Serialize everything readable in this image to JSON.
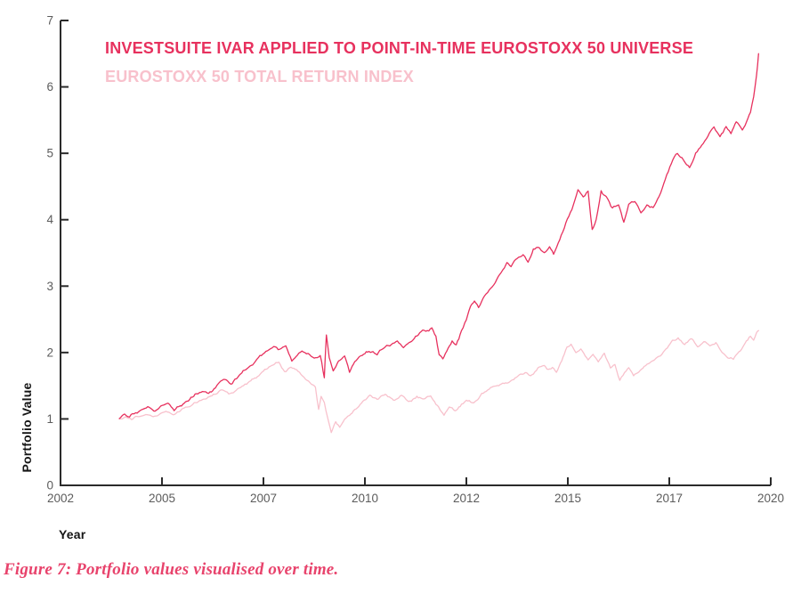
{
  "figure": {
    "caption": "Figure 7: Portfolio values visualised over time."
  },
  "colors": {
    "ivar": "#E7315E",
    "index": "#F8C1CC",
    "caption": "#E8436C",
    "axis": "#2B2B2B",
    "tick_label": "#5C5C5C",
    "axis_title": "#151515"
  },
  "chart_data": {
    "type": "line",
    "title": "",
    "legend_position": "top-left",
    "grid": false,
    "legend": [
      {
        "label": "INVESTSUITE IVAR APPLIED TO POINT-IN-TIME EUROSTOXX 50 UNIVERSE",
        "color_key": "ivar"
      },
      {
        "label": "EUROSTOXX 50 TOTAL RETURN INDEX",
        "color_key": "index"
      }
    ],
    "x_axis": {
      "title": "Year",
      "tick_labels": [
        "2002",
        "2005",
        "2007",
        "2010",
        "2012",
        "2015",
        "2017",
        "2020"
      ],
      "range_years": [
        2002,
        2019.5
      ]
    },
    "y_axis": {
      "title": "Portfolio Value",
      "ticks": [
        0,
        1,
        2,
        3,
        4,
        5,
        6,
        7
      ],
      "range": [
        0,
        7
      ]
    },
    "series": [
      {
        "name": "EUROSTOXX 50 TOTAL RETURN INDEX",
        "color_key": "index",
        "noise_amp": 0.013,
        "points": [
          [
            2003.45,
            1.0
          ],
          [
            2003.6,
            1.03
          ],
          [
            2003.75,
            0.99
          ],
          [
            2003.95,
            1.04
          ],
          [
            2004.1,
            1.07
          ],
          [
            2004.25,
            1.04
          ],
          [
            2004.45,
            1.08
          ],
          [
            2004.6,
            1.11
          ],
          [
            2004.78,
            1.06
          ],
          [
            2004.95,
            1.12
          ],
          [
            2005.15,
            1.18
          ],
          [
            2005.4,
            1.26
          ],
          [
            2005.6,
            1.31
          ],
          [
            2005.8,
            1.37
          ],
          [
            2006.0,
            1.44
          ],
          [
            2006.18,
            1.38
          ],
          [
            2006.4,
            1.46
          ],
          [
            2006.62,
            1.55
          ],
          [
            2006.85,
            1.64
          ],
          [
            2007.0,
            1.72
          ],
          [
            2007.2,
            1.8
          ],
          [
            2007.38,
            1.85
          ],
          [
            2007.52,
            1.71
          ],
          [
            2007.68,
            1.78
          ],
          [
            2007.85,
            1.72
          ],
          [
            2008.0,
            1.63
          ],
          [
            2008.15,
            1.55
          ],
          [
            2008.28,
            1.48
          ],
          [
            2008.36,
            1.14
          ],
          [
            2008.42,
            1.34
          ],
          [
            2008.5,
            1.25
          ],
          [
            2008.58,
            1.02
          ],
          [
            2008.67,
            0.8
          ],
          [
            2008.78,
            0.96
          ],
          [
            2008.88,
            0.87
          ],
          [
            2009.0,
            1.0
          ],
          [
            2009.12,
            1.06
          ],
          [
            2009.28,
            1.15
          ],
          [
            2009.45,
            1.27
          ],
          [
            2009.62,
            1.36
          ],
          [
            2009.8,
            1.3
          ],
          [
            2010.0,
            1.37
          ],
          [
            2010.2,
            1.28
          ],
          [
            2010.4,
            1.36
          ],
          [
            2010.58,
            1.26
          ],
          [
            2010.78,
            1.34
          ],
          [
            2010.95,
            1.3
          ],
          [
            2011.12,
            1.35
          ],
          [
            2011.28,
            1.2
          ],
          [
            2011.45,
            1.05
          ],
          [
            2011.58,
            1.18
          ],
          [
            2011.72,
            1.12
          ],
          [
            2011.88,
            1.22
          ],
          [
            2012.0,
            1.28
          ],
          [
            2012.18,
            1.24
          ],
          [
            2012.38,
            1.38
          ],
          [
            2012.6,
            1.47
          ],
          [
            2012.8,
            1.5
          ],
          [
            2013.0,
            1.54
          ],
          [
            2013.2,
            1.62
          ],
          [
            2013.45,
            1.7
          ],
          [
            2013.58,
            1.65
          ],
          [
            2013.8,
            1.78
          ],
          [
            2013.92,
            1.81
          ],
          [
            2014.02,
            1.74
          ],
          [
            2014.12,
            1.78
          ],
          [
            2014.22,
            1.7
          ],
          [
            2014.35,
            1.88
          ],
          [
            2014.48,
            2.08
          ],
          [
            2014.58,
            2.13
          ],
          [
            2014.7,
            2.0
          ],
          [
            2014.82,
            2.05
          ],
          [
            2015.0,
            1.89
          ],
          [
            2015.12,
            1.97
          ],
          [
            2015.25,
            1.86
          ],
          [
            2015.4,
            1.99
          ],
          [
            2015.55,
            1.77
          ],
          [
            2015.66,
            1.82
          ],
          [
            2015.78,
            1.58
          ],
          [
            2015.9,
            1.7
          ],
          [
            2016.0,
            1.77
          ],
          [
            2016.12,
            1.65
          ],
          [
            2016.28,
            1.73
          ],
          [
            2016.45,
            1.82
          ],
          [
            2016.6,
            1.88
          ],
          [
            2016.78,
            1.95
          ],
          [
            2016.92,
            2.05
          ],
          [
            2017.08,
            2.18
          ],
          [
            2017.22,
            2.22
          ],
          [
            2017.38,
            2.12
          ],
          [
            2017.55,
            2.21
          ],
          [
            2017.7,
            2.08
          ],
          [
            2017.85,
            2.16
          ],
          [
            2018.0,
            2.1
          ],
          [
            2018.15,
            2.15
          ],
          [
            2018.3,
            2.0
          ],
          [
            2018.45,
            1.92
          ],
          [
            2018.58,
            1.9
          ],
          [
            2018.75,
            2.02
          ],
          [
            2018.9,
            2.17
          ],
          [
            2019.0,
            2.24
          ],
          [
            2019.08,
            2.19
          ],
          [
            2019.15,
            2.3
          ],
          [
            2019.2,
            2.33
          ]
        ]
      },
      {
        "name": "INVESTSUITE IVAR APPLIED TO POINT-IN-TIME EUROSTOXX 50 UNIVERSE",
        "color_key": "ivar",
        "noise_amp": 0.016,
        "points": [
          [
            2003.45,
            1.0
          ],
          [
            2003.58,
            1.07
          ],
          [
            2003.7,
            1.03
          ],
          [
            2003.85,
            1.09
          ],
          [
            2004.0,
            1.14
          ],
          [
            2004.15,
            1.18
          ],
          [
            2004.3,
            1.12
          ],
          [
            2004.5,
            1.2
          ],
          [
            2004.65,
            1.24
          ],
          [
            2004.8,
            1.13
          ],
          [
            2004.95,
            1.2
          ],
          [
            2005.15,
            1.27
          ],
          [
            2005.35,
            1.38
          ],
          [
            2005.5,
            1.42
          ],
          [
            2005.65,
            1.38
          ],
          [
            2005.85,
            1.5
          ],
          [
            2006.05,
            1.6
          ],
          [
            2006.2,
            1.52
          ],
          [
            2006.4,
            1.66
          ],
          [
            2006.6,
            1.76
          ],
          [
            2006.8,
            1.87
          ],
          [
            2006.95,
            1.96
          ],
          [
            2007.1,
            2.03
          ],
          [
            2007.25,
            2.09
          ],
          [
            2007.4,
            2.05
          ],
          [
            2007.55,
            2.1
          ],
          [
            2007.7,
            1.87
          ],
          [
            2007.8,
            1.94
          ],
          [
            2007.95,
            2.02
          ],
          [
            2008.1,
            1.99
          ],
          [
            2008.25,
            1.92
          ],
          [
            2008.4,
            1.96
          ],
          [
            2008.5,
            1.62
          ],
          [
            2008.55,
            2.26
          ],
          [
            2008.62,
            1.92
          ],
          [
            2008.72,
            1.72
          ],
          [
            2008.85,
            1.88
          ],
          [
            2009.0,
            1.95
          ],
          [
            2009.12,
            1.7
          ],
          [
            2009.25,
            1.86
          ],
          [
            2009.4,
            1.95
          ],
          [
            2009.6,
            2.02
          ],
          [
            2009.8,
            1.97
          ],
          [
            2010.0,
            2.08
          ],
          [
            2010.15,
            2.12
          ],
          [
            2010.3,
            2.18
          ],
          [
            2010.45,
            2.07
          ],
          [
            2010.65,
            2.17
          ],
          [
            2010.85,
            2.3
          ],
          [
            2011.0,
            2.32
          ],
          [
            2011.15,
            2.37
          ],
          [
            2011.25,
            2.24
          ],
          [
            2011.33,
            1.97
          ],
          [
            2011.42,
            1.91
          ],
          [
            2011.55,
            2.07
          ],
          [
            2011.65,
            2.17
          ],
          [
            2011.75,
            2.11
          ],
          [
            2011.88,
            2.33
          ],
          [
            2012.0,
            2.5
          ],
          [
            2012.1,
            2.7
          ],
          [
            2012.2,
            2.77
          ],
          [
            2012.3,
            2.68
          ],
          [
            2012.45,
            2.86
          ],
          [
            2012.6,
            2.97
          ],
          [
            2012.75,
            3.1
          ],
          [
            2012.9,
            3.25
          ],
          [
            2013.0,
            3.36
          ],
          [
            2013.1,
            3.3
          ],
          [
            2013.25,
            3.42
          ],
          [
            2013.4,
            3.48
          ],
          [
            2013.52,
            3.36
          ],
          [
            2013.65,
            3.55
          ],
          [
            2013.8,
            3.58
          ],
          [
            2013.92,
            3.5
          ],
          [
            2014.05,
            3.6
          ],
          [
            2014.15,
            3.48
          ],
          [
            2014.3,
            3.7
          ],
          [
            2014.45,
            3.95
          ],
          [
            2014.6,
            4.15
          ],
          [
            2014.75,
            4.45
          ],
          [
            2014.88,
            4.35
          ],
          [
            2015.0,
            4.43
          ],
          [
            2015.1,
            3.85
          ],
          [
            2015.2,
            4.0
          ],
          [
            2015.32,
            4.43
          ],
          [
            2015.45,
            4.35
          ],
          [
            2015.6,
            4.18
          ],
          [
            2015.75,
            4.22
          ],
          [
            2015.88,
            3.97
          ],
          [
            2016.0,
            4.23
          ],
          [
            2016.15,
            4.28
          ],
          [
            2016.3,
            4.1
          ],
          [
            2016.45,
            4.22
          ],
          [
            2016.6,
            4.18
          ],
          [
            2016.75,
            4.35
          ],
          [
            2016.9,
            4.6
          ],
          [
            2017.05,
            4.85
          ],
          [
            2017.2,
            5.0
          ],
          [
            2017.35,
            4.9
          ],
          [
            2017.5,
            4.78
          ],
          [
            2017.65,
            5.0
          ],
          [
            2017.8,
            5.12
          ],
          [
            2017.95,
            5.25
          ],
          [
            2018.1,
            5.4
          ],
          [
            2018.25,
            5.25
          ],
          [
            2018.4,
            5.4
          ],
          [
            2018.52,
            5.3
          ],
          [
            2018.65,
            5.48
          ],
          [
            2018.8,
            5.35
          ],
          [
            2018.9,
            5.47
          ],
          [
            2019.0,
            5.62
          ],
          [
            2019.08,
            5.85
          ],
          [
            2019.15,
            6.18
          ],
          [
            2019.2,
            6.5
          ]
        ]
      }
    ]
  }
}
